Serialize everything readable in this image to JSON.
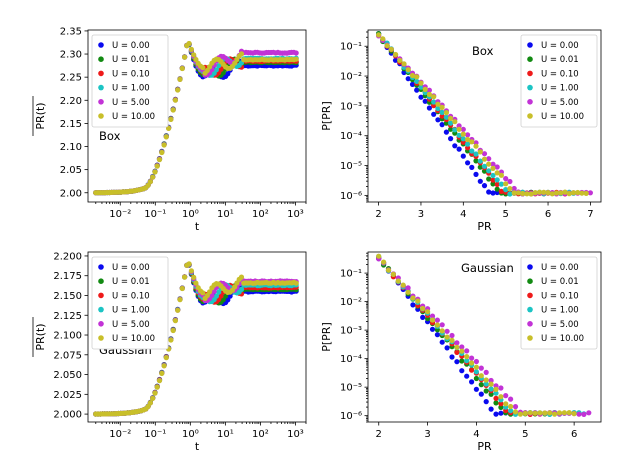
{
  "colors": {
    "U0": "#0a0aef",
    "U001": "#128a12",
    "U01": "#ee1a1a",
    "U1": "#1cc4c4",
    "U5": "#c233d6",
    "U10": "#c8bf2a"
  },
  "chart_data": [
    {
      "id": "top-left",
      "type": "scatter",
      "annotation": "Box",
      "xlabel": "t",
      "ylabel": "PR(t)",
      "xscale": "log",
      "xlim": [
        0.0012,
        2000
      ],
      "ylim": [
        1.98,
        2.352
      ],
      "xticks": [
        {
          "v": 0.01,
          "label": "10⁻²"
        },
        {
          "v": 0.1,
          "label": "10⁻¹"
        },
        {
          "v": 1,
          "label": "10⁰"
        },
        {
          "v": 10,
          "label": "10¹"
        },
        {
          "v": 100,
          "label": "10²"
        },
        {
          "v": 1000,
          "label": "10³"
        }
      ],
      "yticks": [
        {
          "v": 2.0,
          "label": "2.00"
        },
        {
          "v": 2.05,
          "label": "2.05"
        },
        {
          "v": 2.1,
          "label": "2.10"
        },
        {
          "v": 2.15,
          "label": "2.15"
        },
        {
          "v": 2.2,
          "label": "2.20"
        },
        {
          "v": 2.25,
          "label": "2.25"
        },
        {
          "v": 2.3,
          "label": "2.30"
        },
        {
          "v": 2.35,
          "label": "2.35"
        }
      ],
      "legend_position": "top-left",
      "legend": [
        "U = 0.00",
        "U = 0.01",
        "U = 0.10",
        "U = 1.00",
        "U = 5.00",
        "U = 10.00"
      ],
      "rise": {
        "y0": 2.0,
        "ymax": 2.33
      },
      "plateau": [
        {
          "name": "U = 0.00",
          "dip": 2.25,
          "level": 2.275
        },
        {
          "name": "U = 0.01",
          "dip": 2.255,
          "level": 2.282
        },
        {
          "name": "U = 0.10",
          "dip": 2.26,
          "level": 2.285
        },
        {
          "name": "U = 1.00",
          "dip": 2.262,
          "level": 2.29
        },
        {
          "name": "U = 5.00",
          "dip": 2.265,
          "level": 2.303
        },
        {
          "name": "U = 10.00",
          "dip": 2.27,
          "level": 2.288
        }
      ]
    },
    {
      "id": "top-right",
      "type": "scatter",
      "annotation": "Box",
      "xlabel": "PR",
      "ylabel": "P[PR]",
      "yscale": "log",
      "xlim": [
        1.75,
        7.25
      ],
      "ylim": [
        6e-07,
        0.35
      ],
      "xticks": [
        {
          "v": 2,
          "label": "2"
        },
        {
          "v": 3,
          "label": "3"
        },
        {
          "v": 4,
          "label": "4"
        },
        {
          "v": 5,
          "label": "5"
        },
        {
          "v": 6,
          "label": "6"
        },
        {
          "v": 7,
          "label": "7"
        }
      ],
      "yticks": [
        {
          "v": 1e-06,
          "label": "10⁻⁶"
        },
        {
          "v": 1e-05,
          "label": "10⁻⁵"
        },
        {
          "v": 0.0001,
          "label": "10⁻⁴"
        },
        {
          "v": 0.001,
          "label": "10⁻³"
        },
        {
          "v": 0.01,
          "label": "10⁻²"
        },
        {
          "v": 0.1,
          "label": "10⁻¹"
        }
      ],
      "legend_position": "top-right",
      "legend": [
        "U = 0.00",
        "U = 0.01",
        "U = 0.10",
        "U = 1.00",
        "U = 5.00",
        "U = 10.00"
      ],
      "series": [
        {
          "name": "U = 0.00",
          "slope": 2.05,
          "xmax": 5.6
        },
        {
          "name": "U = 0.01",
          "slope": 1.85,
          "xmax": 6.1
        },
        {
          "name": "U = 0.10",
          "slope": 1.8,
          "xmax": 6.4
        },
        {
          "name": "U = 1.00",
          "slope": 1.75,
          "xmax": 6.6
        },
        {
          "name": "U = 5.00",
          "slope": 1.6,
          "xmax": 7.0
        },
        {
          "name": "U = 10.00",
          "slope": 1.65,
          "xmax": 6.9
        }
      ]
    },
    {
      "id": "bottom-left",
      "type": "scatter",
      "annotation": "Gaussian",
      "xlabel": "t",
      "ylabel": "PR(t)",
      "xscale": "log",
      "xlim": [
        0.0012,
        2000
      ],
      "ylim": [
        1.99,
        2.205
      ],
      "xticks": [
        {
          "v": 0.01,
          "label": "10⁻²"
        },
        {
          "v": 0.1,
          "label": "10⁻¹"
        },
        {
          "v": 1,
          "label": "10⁰"
        },
        {
          "v": 10,
          "label": "10¹"
        },
        {
          "v": 100,
          "label": "10²"
        },
        {
          "v": 1000,
          "label": "10³"
        }
      ],
      "yticks": [
        {
          "v": 2.0,
          "label": "2.000"
        },
        {
          "v": 2.025,
          "label": "2.025"
        },
        {
          "v": 2.05,
          "label": "2.050"
        },
        {
          "v": 2.075,
          "label": "2.075"
        },
        {
          "v": 2.1,
          "label": "2.100"
        },
        {
          "v": 2.125,
          "label": "2.125"
        },
        {
          "v": 2.15,
          "label": "2.150"
        },
        {
          "v": 2.175,
          "label": "2.175"
        },
        {
          "v": 2.2,
          "label": "2.200"
        }
      ],
      "legend_position": "top-left",
      "legend": [
        "U = 0.00",
        "U = 0.01",
        "U = 0.10",
        "U = 1.00",
        "U = 5.00",
        "U = 10.00"
      ],
      "rise": {
        "y0": 2.0,
        "ymax": 2.195
      },
      "plateau": [
        {
          "name": "U = 0.00",
          "dip": 2.14,
          "level": 2.155
        },
        {
          "name": "U = 0.01",
          "dip": 2.142,
          "level": 2.158
        },
        {
          "name": "U = 0.10",
          "dip": 2.145,
          "level": 2.16
        },
        {
          "name": "U = 1.00",
          "dip": 2.147,
          "level": 2.163
        },
        {
          "name": "U = 5.00",
          "dip": 2.15,
          "level": 2.168
        },
        {
          "name": "U = 10.00",
          "dip": 2.153,
          "level": 2.166
        }
      ]
    },
    {
      "id": "bottom-right",
      "type": "scatter",
      "annotation": "Gaussian",
      "xlabel": "PR",
      "ylabel": "P[PR]",
      "yscale": "log",
      "xlim": [
        1.78,
        6.55
      ],
      "ylim": [
        6e-07,
        0.55
      ],
      "xticks": [
        {
          "v": 2,
          "label": "2"
        },
        {
          "v": 3,
          "label": "3"
        },
        {
          "v": 4,
          "label": "4"
        },
        {
          "v": 5,
          "label": "5"
        },
        {
          "v": 6,
          "label": "6"
        }
      ],
      "yticks": [
        {
          "v": 1e-06,
          "label": "10⁻⁶"
        },
        {
          "v": 1e-05,
          "label": "10⁻⁵"
        },
        {
          "v": 0.0001,
          "label": "10⁻⁴"
        },
        {
          "v": 0.001,
          "label": "10⁻³"
        },
        {
          "v": 0.01,
          "label": "10⁻²"
        },
        {
          "v": 0.1,
          "label": "10⁻¹"
        }
      ],
      "legend_position": "top-right",
      "legend": [
        "U = 0.00",
        "U = 0.01",
        "U = 0.10",
        "U = 1.00",
        "U = 5.00",
        "U = 10.00"
      ],
      "series": [
        {
          "name": "U = 0.00",
          "slope": 2.3,
          "xmax": 5.2
        },
        {
          "name": "U = 0.01",
          "slope": 2.1,
          "xmax": 5.5
        },
        {
          "name": "U = 0.10",
          "slope": 2.05,
          "xmax": 5.7
        },
        {
          "name": "U = 1.00",
          "slope": 2.0,
          "xmax": 6.2
        },
        {
          "name": "U = 5.00",
          "slope": 1.85,
          "xmax": 6.3
        },
        {
          "name": "U = 10.00",
          "slope": 1.95,
          "xmax": 6.0
        }
      ]
    }
  ]
}
